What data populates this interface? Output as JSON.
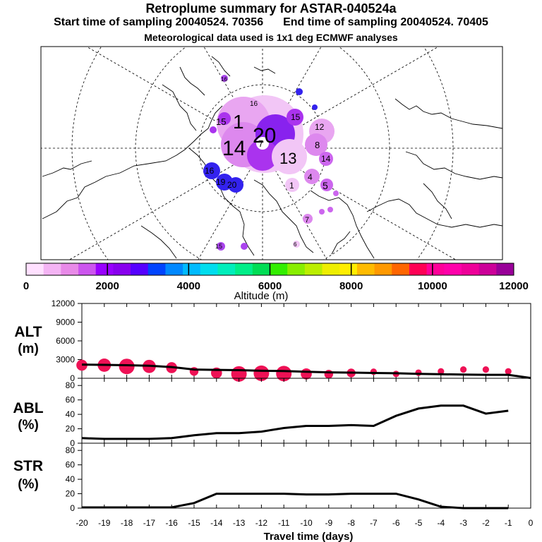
{
  "header": {
    "title": "Retroplume summary for ASTAR-040524a",
    "start_label": "Start time of sampling 20040524. 70356",
    "end_label": "End time of sampling 20040524. 70405",
    "met_label": "Meteorological data used is 1x1 deg ECMWF analyses"
  },
  "colorbar": {
    "label": "Altitude (m)",
    "tick_labels": [
      "0",
      "2000",
      "4000",
      "6000",
      "8000",
      "10000",
      "12000"
    ],
    "colors": [
      "#ffe0ff",
      "#f4b4f4",
      "#e88ae8",
      "#cc55ee",
      "#9900ff",
      "#8800ee",
      "#5500ff",
      "#0044ff",
      "#0088ff",
      "#00bbff",
      "#00ddee",
      "#00eebb",
      "#00ee88",
      "#00dd55",
      "#33ee00",
      "#88ee00",
      "#bbee00",
      "#eeee00",
      "#ffee00",
      "#ffbb00",
      "#ff9900",
      "#ff6600",
      "#ff0055",
      "#ff0099",
      "#ff00aa",
      "#ee0099",
      "#cc0099",
      "#990099"
    ]
  },
  "map_labels": [
    {
      "t": "16",
      "size": "s",
      "fill": "#cc66ee"
    },
    {
      "t": "15",
      "size": "m",
      "fill": "#aa33ee"
    },
    {
      "t": "1",
      "size": "l",
      "fill": "#cc66ee"
    },
    {
      "t": "20",
      "size": "xl",
      "fill": "#8822ee"
    },
    {
      "t": "14",
      "size": "xl",
      "fill": "#dd88ee"
    },
    {
      "t": "7",
      "size": "m",
      "fill": "#ffffff"
    },
    {
      "t": "13",
      "size": "l",
      "fill": "#cc66ee"
    },
    {
      "t": "15",
      "size": "m",
      "fill": "#aa44ee"
    },
    {
      "t": "12",
      "size": "m",
      "fill": "#aa44ee"
    },
    {
      "t": "8",
      "size": "m",
      "fill": "#aa44ee"
    },
    {
      "t": "14",
      "size": "m",
      "fill": "#cc66ee"
    },
    {
      "t": "16",
      "size": "m",
      "fill": "#3322ee"
    },
    {
      "t": "19",
      "size": "m",
      "fill": "#3322ee"
    },
    {
      "t": "20",
      "size": "m",
      "fill": "#3322ee"
    },
    {
      "t": "5",
      "size": "m",
      "fill": "#cc66ee"
    },
    {
      "t": "4",
      "size": "m",
      "fill": "#cc66ee"
    },
    {
      "t": "1",
      "size": "m",
      "fill": "#dd88ee"
    },
    {
      "t": "7",
      "size": "s",
      "fill": "#cc66ee"
    },
    {
      "t": "15",
      "size": "s",
      "fill": "#aa44ee"
    },
    {
      "t": "16",
      "size": "s",
      "fill": "#aa44ee"
    },
    {
      "t": "6",
      "size": "s",
      "fill": "#cc66ee"
    }
  ],
  "chart_data": [
    {
      "type": "line",
      "panel": "ALT",
      "ylabel": "ALT (m)",
      "ylim": [
        0,
        12000
      ],
      "yticks": [
        0,
        3000,
        6000,
        9000,
        12000
      ],
      "x": [
        -20,
        -19,
        -18,
        -17,
        -16,
        -15,
        -14,
        -13,
        -12,
        -11,
        -10,
        -9,
        -8,
        -7,
        -6,
        -5,
        -4,
        -3,
        -2,
        -1,
        0
      ],
      "series": [
        {
          "name": "mean altitude",
          "values": [
            2200,
            2150,
            2100,
            2000,
            1800,
            1400,
            1350,
            1300,
            1200,
            1150,
            1050,
            950,
            900,
            850,
            800,
            700,
            650,
            600,
            550,
            550,
            50
          ]
        }
      ],
      "scatter": {
        "name": "plume altitude",
        "x": [
          -20,
          -19,
          -18,
          -17,
          -16,
          -15,
          -14,
          -13,
          -12,
          -11,
          -10,
          -9,
          -8,
          -7,
          -6,
          -5,
          -4,
          -3,
          -2,
          -1
        ],
        "values": [
          2100,
          2100,
          1900,
          1900,
          1700,
          1100,
          850,
          700,
          800,
          750,
          700,
          650,
          850,
          1050,
          700,
          900,
          1100,
          1400,
          1400,
          1100
        ],
        "weights": [
          3,
          4,
          5,
          4,
          3,
          2,
          3,
          5,
          5,
          5,
          3,
          2,
          2,
          1,
          1,
          1,
          1,
          1,
          1,
          1
        ]
      }
    },
    {
      "type": "line",
      "panel": "ABL",
      "ylabel": "ABL (%)",
      "ylim": [
        0,
        90
      ],
      "yticks": [
        0,
        20,
        40,
        60,
        80
      ],
      "x": [
        -20,
        -19,
        -18,
        -17,
        -16,
        -15,
        -14,
        -13,
        -12,
        -11,
        -10,
        -9,
        -8,
        -7,
        -6,
        -5,
        -4,
        -3,
        -2,
        -1
      ],
      "series": [
        {
          "name": "ABL fraction",
          "values": [
            7,
            6,
            6,
            6,
            7,
            11,
            14,
            14,
            16,
            21,
            24,
            24,
            25,
            24,
            38,
            48,
            52,
            52,
            41,
            45
          ]
        }
      ]
    },
    {
      "type": "line",
      "panel": "STR",
      "ylabel": "STR (%)",
      "ylim": [
        0,
        90
      ],
      "yticks": [
        0,
        20,
        40,
        60,
        80
      ],
      "xlabel": "Travel time (days)",
      "xticks": [
        -20,
        -19,
        -18,
        -17,
        -16,
        -15,
        -14,
        -13,
        -12,
        -11,
        -10,
        -9,
        -8,
        -7,
        -6,
        -5,
        -4,
        -3,
        -2,
        -1,
        0
      ],
      "x": [
        -20,
        -19,
        -18,
        -17,
        -16,
        -15,
        -14,
        -13,
        -12,
        -11,
        -10,
        -9,
        -8,
        -7,
        -6,
        -5,
        -4,
        -3,
        -2,
        -1
      ],
      "series": [
        {
          "name": "stratosphere fraction",
          "values": [
            1,
            1,
            1,
            1,
            1,
            7,
            20,
            20,
            20,
            20,
            19,
            19,
            20,
            20,
            20,
            12,
            2,
            0,
            0,
            0
          ]
        }
      ]
    }
  ],
  "panels": {
    "alt": {
      "name": "ALT",
      "unit": "(m)"
    },
    "abl": {
      "name": "ABL",
      "unit": "(%)"
    },
    "str": {
      "name": "STR",
      "unit": "(%)"
    }
  },
  "xaxis": {
    "label": "Travel time (days)"
  }
}
